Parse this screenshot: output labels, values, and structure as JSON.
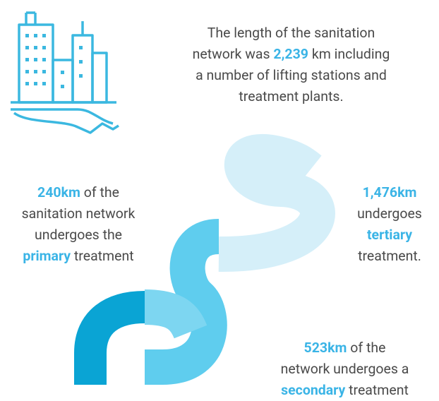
{
  "intro": {
    "parts": [
      "The length of the sanitation",
      "network was",
      "2,239",
      "km including",
      "a number of lifting stations and",
      "treatment plants."
    ]
  },
  "primary": {
    "parts": [
      "240km",
      "of the",
      "sanitation network",
      "undergoes the",
      "primary",
      "treatment"
    ]
  },
  "tertiary": {
    "parts": [
      "1,476km",
      "undergoes",
      "tertiary",
      "treatment."
    ]
  },
  "secondary": {
    "parts": [
      "523km",
      "of the",
      "network undergoes a",
      "secondary",
      "treatment"
    ]
  }
}
